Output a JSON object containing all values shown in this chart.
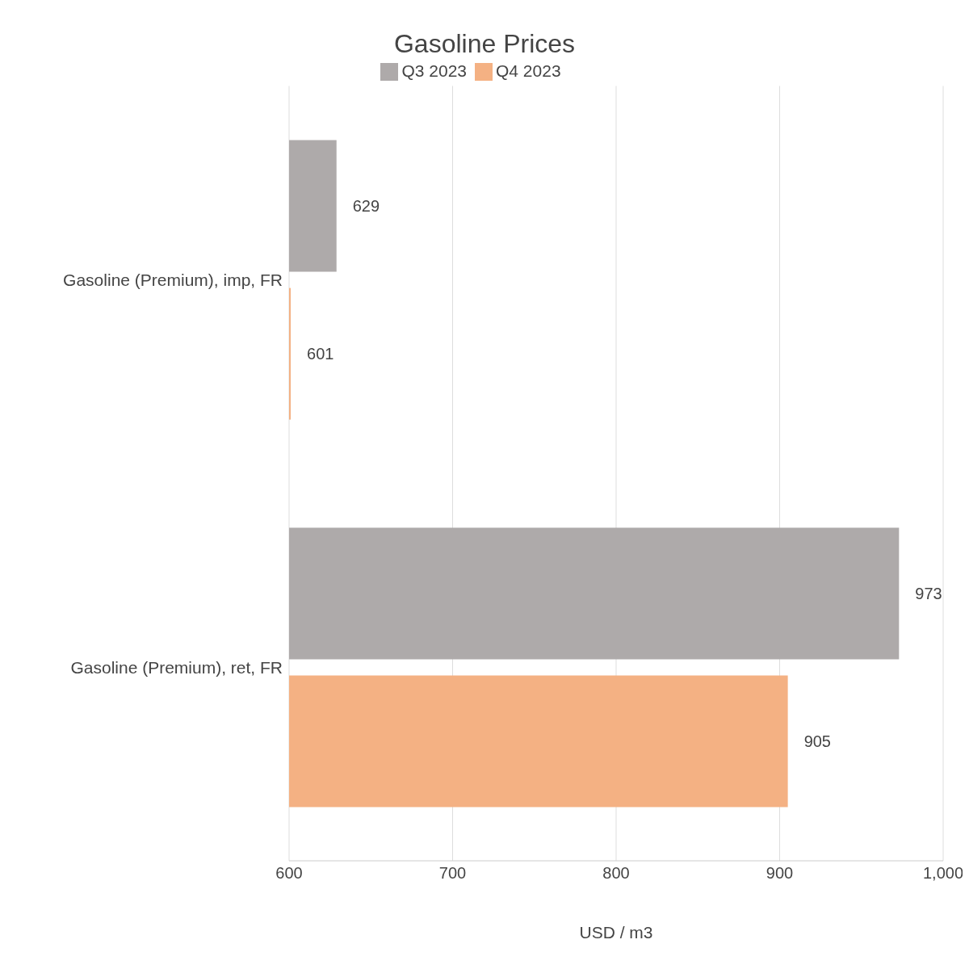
{
  "chart_data": {
    "type": "bar",
    "orientation": "horizontal",
    "title": "Gasoline Prices",
    "xlabel": "USD / m3",
    "categories": [
      "Gasoline (Premium), imp, FR",
      "Gasoline (Premium), ret, FR"
    ],
    "series": [
      {
        "name": "Q3 2023",
        "color": "#aeaaaa",
        "values": [
          629,
          973
        ]
      },
      {
        "name": "Q4 2023",
        "color": "#f4b183",
        "values": [
          601,
          905
        ]
      }
    ],
    "xlim": [
      600,
      1000
    ],
    "xticks": [
      600,
      700,
      800,
      900,
      {
        "value": 1000,
        "label": "1,000"
      }
    ],
    "grid": "x",
    "legend": "top",
    "data_labels": true
  }
}
